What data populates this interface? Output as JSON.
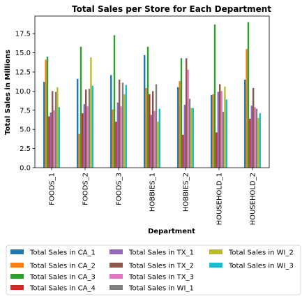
{
  "chart_data": {
    "type": "bar",
    "title": "Total Sales per Store for Each Department",
    "xlabel": "Department",
    "ylabel": "Total Sales in Millions",
    "ylim": [
      0,
      19.8
    ],
    "yticks": [
      "0.0",
      "2.5",
      "5.0",
      "7.5",
      "10.0",
      "12.5",
      "15.0",
      "17.5"
    ],
    "ytick_values": [
      0,
      2.5,
      5,
      7.5,
      10,
      12.5,
      15,
      17.5
    ],
    "categories": [
      "FOODS_1",
      "FOODS_2",
      "FOODS_3",
      "HOBBIES_1",
      "HOBBIES_2",
      "HOUSEHOLD_1",
      "HOUSEHOLD_2"
    ],
    "grid": false,
    "legend_position": "bottom",
    "series": [
      {
        "name": "Total Sales in CA_1",
        "color": "#1f77b4",
        "values": [
          11.2,
          11.6,
          12.1,
          14.7,
          10.5,
          9.5,
          11.5
        ]
      },
      {
        "name": "Total Sales in CA_2",
        "color": "#ff7f0e",
        "values": [
          14.1,
          4.4,
          7.6,
          10.4,
          11.3,
          9.6,
          15.5
        ]
      },
      {
        "name": "Total Sales in CA_3",
        "color": "#2ca02c",
        "values": [
          14.5,
          15.8,
          17.3,
          15.8,
          14.3,
          18.7,
          19.0
        ]
      },
      {
        "name": "Total Sales in CA_4",
        "color": "#d62728",
        "values": [
          6.7,
          7.1,
          6.0,
          9.6,
          4.3,
          4.6,
          6.4
        ]
      },
      {
        "name": "Total Sales in TX_1",
        "color": "#9467bd",
        "values": [
          7.2,
          8.3,
          8.5,
          6.9,
          8.2,
          9.9,
          8.1
        ]
      },
      {
        "name": "Total Sales in TX_2",
        "color": "#8c564b",
        "values": [
          10.0,
          10.2,
          11.5,
          10.0,
          14.3,
          10.9,
          10.4
        ]
      },
      {
        "name": "Total Sales in TX_3",
        "color": "#e377c2",
        "values": [
          7.5,
          8.0,
          8.0,
          7.4,
          12.8,
          10.0,
          7.9
        ]
      },
      {
        "name": "Total Sales in WI_1",
        "color": "#7f7f7f",
        "values": [
          9.9,
          10.3,
          11.1,
          10.9,
          9.0,
          7.3,
          7.7
        ]
      },
      {
        "name": "Total Sales in WI_2",
        "color": "#bcbd22",
        "values": [
          10.5,
          14.4,
          9.6,
          6.0,
          7.8,
          10.6,
          6.5
        ]
      },
      {
        "name": "Total Sales in WI_3",
        "color": "#17becf",
        "values": [
          7.9,
          10.7,
          10.8,
          7.7,
          7.8,
          8.9,
          7.1
        ]
      }
    ]
  }
}
